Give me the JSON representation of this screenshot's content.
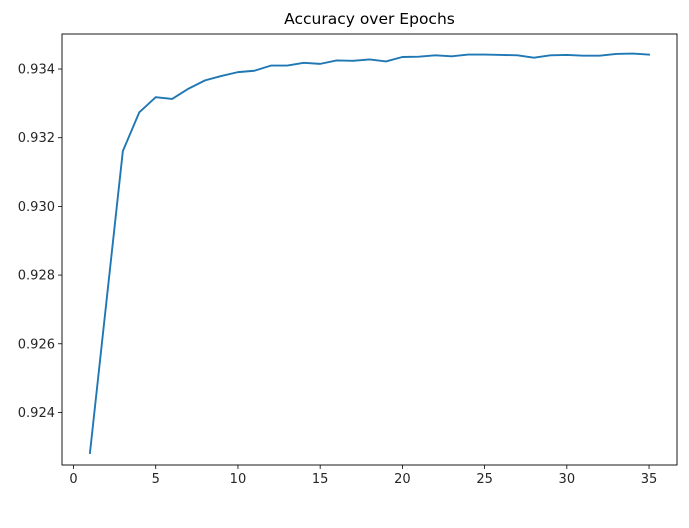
{
  "chart_data": {
    "type": "line",
    "title": "Accuracy over Epochs",
    "xlabel": "",
    "ylabel": "",
    "xlim": [
      -0.7,
      36.7
    ],
    "ylim": [
      0.92247,
      0.93502
    ],
    "xticks": [
      0,
      5,
      10,
      15,
      20,
      25,
      30,
      35
    ],
    "xtick_labels": [
      "0",
      "5",
      "10",
      "15",
      "20",
      "25",
      "30",
      "35"
    ],
    "yticks": [
      0.924,
      0.926,
      0.928,
      0.93,
      0.932,
      0.934
    ],
    "ytick_labels": [
      "0.924",
      "0.926",
      "0.928",
      "0.930",
      "0.932",
      "0.934"
    ],
    "grid": false,
    "legend": "none",
    "series": [
      {
        "color": "#1f77b4",
        "x": [
          1,
          2,
          3,
          4,
          5,
          6,
          7,
          8,
          9,
          10,
          11,
          12,
          13,
          14,
          15,
          16,
          17,
          18,
          19,
          20,
          21,
          22,
          23,
          24,
          25,
          26,
          27,
          28,
          29,
          30,
          31,
          32,
          33,
          34,
          35
        ],
        "values": [
          0.92282,
          0.92722,
          0.93161,
          0.93274,
          0.93318,
          0.93313,
          0.93343,
          0.93367,
          0.9338,
          0.93391,
          0.93395,
          0.9341,
          0.9341,
          0.93418,
          0.93415,
          0.93425,
          0.93424,
          0.93428,
          0.93422,
          0.93435,
          0.93436,
          0.9344,
          0.93437,
          0.93442,
          0.93442,
          0.93441,
          0.9344,
          0.93433,
          0.9344,
          0.93441,
          0.93439,
          0.93439,
          0.93444,
          0.93445,
          0.93442
        ]
      }
    ]
  }
}
